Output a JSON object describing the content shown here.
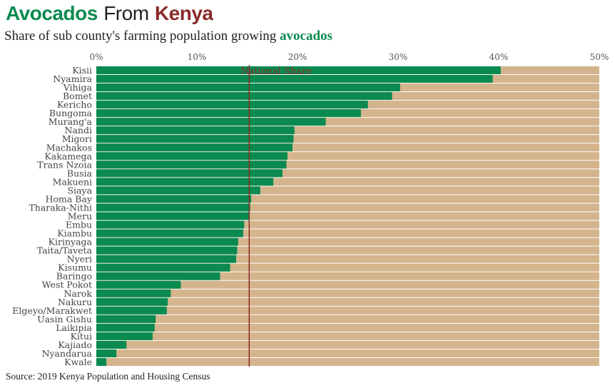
{
  "title": {
    "part1": "Avocados",
    "part2": "From",
    "part3": "Kenya",
    "part1_color": "#0a8a4f",
    "part3_color": "#8b2a2a"
  },
  "subtitle": {
    "text": "Share of sub county's farming population growing",
    "highlight": "avocados",
    "highlight_color": "#0a8a4f"
  },
  "source": "Source: 2019 Kenya Population and Housing Census",
  "colors": {
    "bar": "#0a8a4f",
    "background_bar": "#d4b48c",
    "reference_line": "#8b2a2a"
  },
  "chart_data": {
    "type": "bar",
    "orientation": "horizontal",
    "title": "Avocados From Kenya",
    "subtitle": "Share of sub county's farming population growing avocados",
    "x_axis_position": "top",
    "xlim": [
      0,
      50
    ],
    "xticks": [
      0,
      10,
      20,
      30,
      40,
      50
    ],
    "xtick_labels": [
      "0%",
      "10%",
      "20%",
      "30%",
      "40%",
      "50%"
    ],
    "grid": false,
    "categories": [
      "Kisii",
      "Nyamira",
      "Vihiga",
      "Bomet",
      "Kericho",
      "Bungoma",
      "Murang'a",
      "Nandi",
      "Migori",
      "Machakos",
      "Kakamega",
      "Trans Nzoia",
      "Busia",
      "Makueni",
      "Siaya",
      "Homa Bay",
      "Tharaka-Nithi",
      "Meru",
      "Embu",
      "Kiambu",
      "Kirinyaga",
      "Taita/Taveta",
      "Nyeri",
      "Kisumu",
      "Baringo",
      "West Pokot",
      "Narok",
      "Nakuru",
      "Elgeyo/Marakwet",
      "Uasin Gishu",
      "Laikipia",
      "Kitui",
      "Kajiado",
      "Nyandarua",
      "Kwale"
    ],
    "values": [
      40.2,
      39.4,
      30.2,
      29.4,
      27.0,
      26.3,
      22.8,
      19.7,
      19.6,
      19.5,
      19.0,
      18.9,
      18.5,
      17.6,
      16.3,
      15.4,
      15.3,
      15.2,
      14.7,
      14.6,
      14.1,
      14.0,
      13.9,
      13.3,
      12.3,
      8.4,
      7.4,
      7.1,
      7.0,
      5.9,
      5.8,
      5.6,
      3.0,
      2.0,
      1.0
    ],
    "reference_line": {
      "label": "National Share",
      "value": 15.2
    }
  }
}
